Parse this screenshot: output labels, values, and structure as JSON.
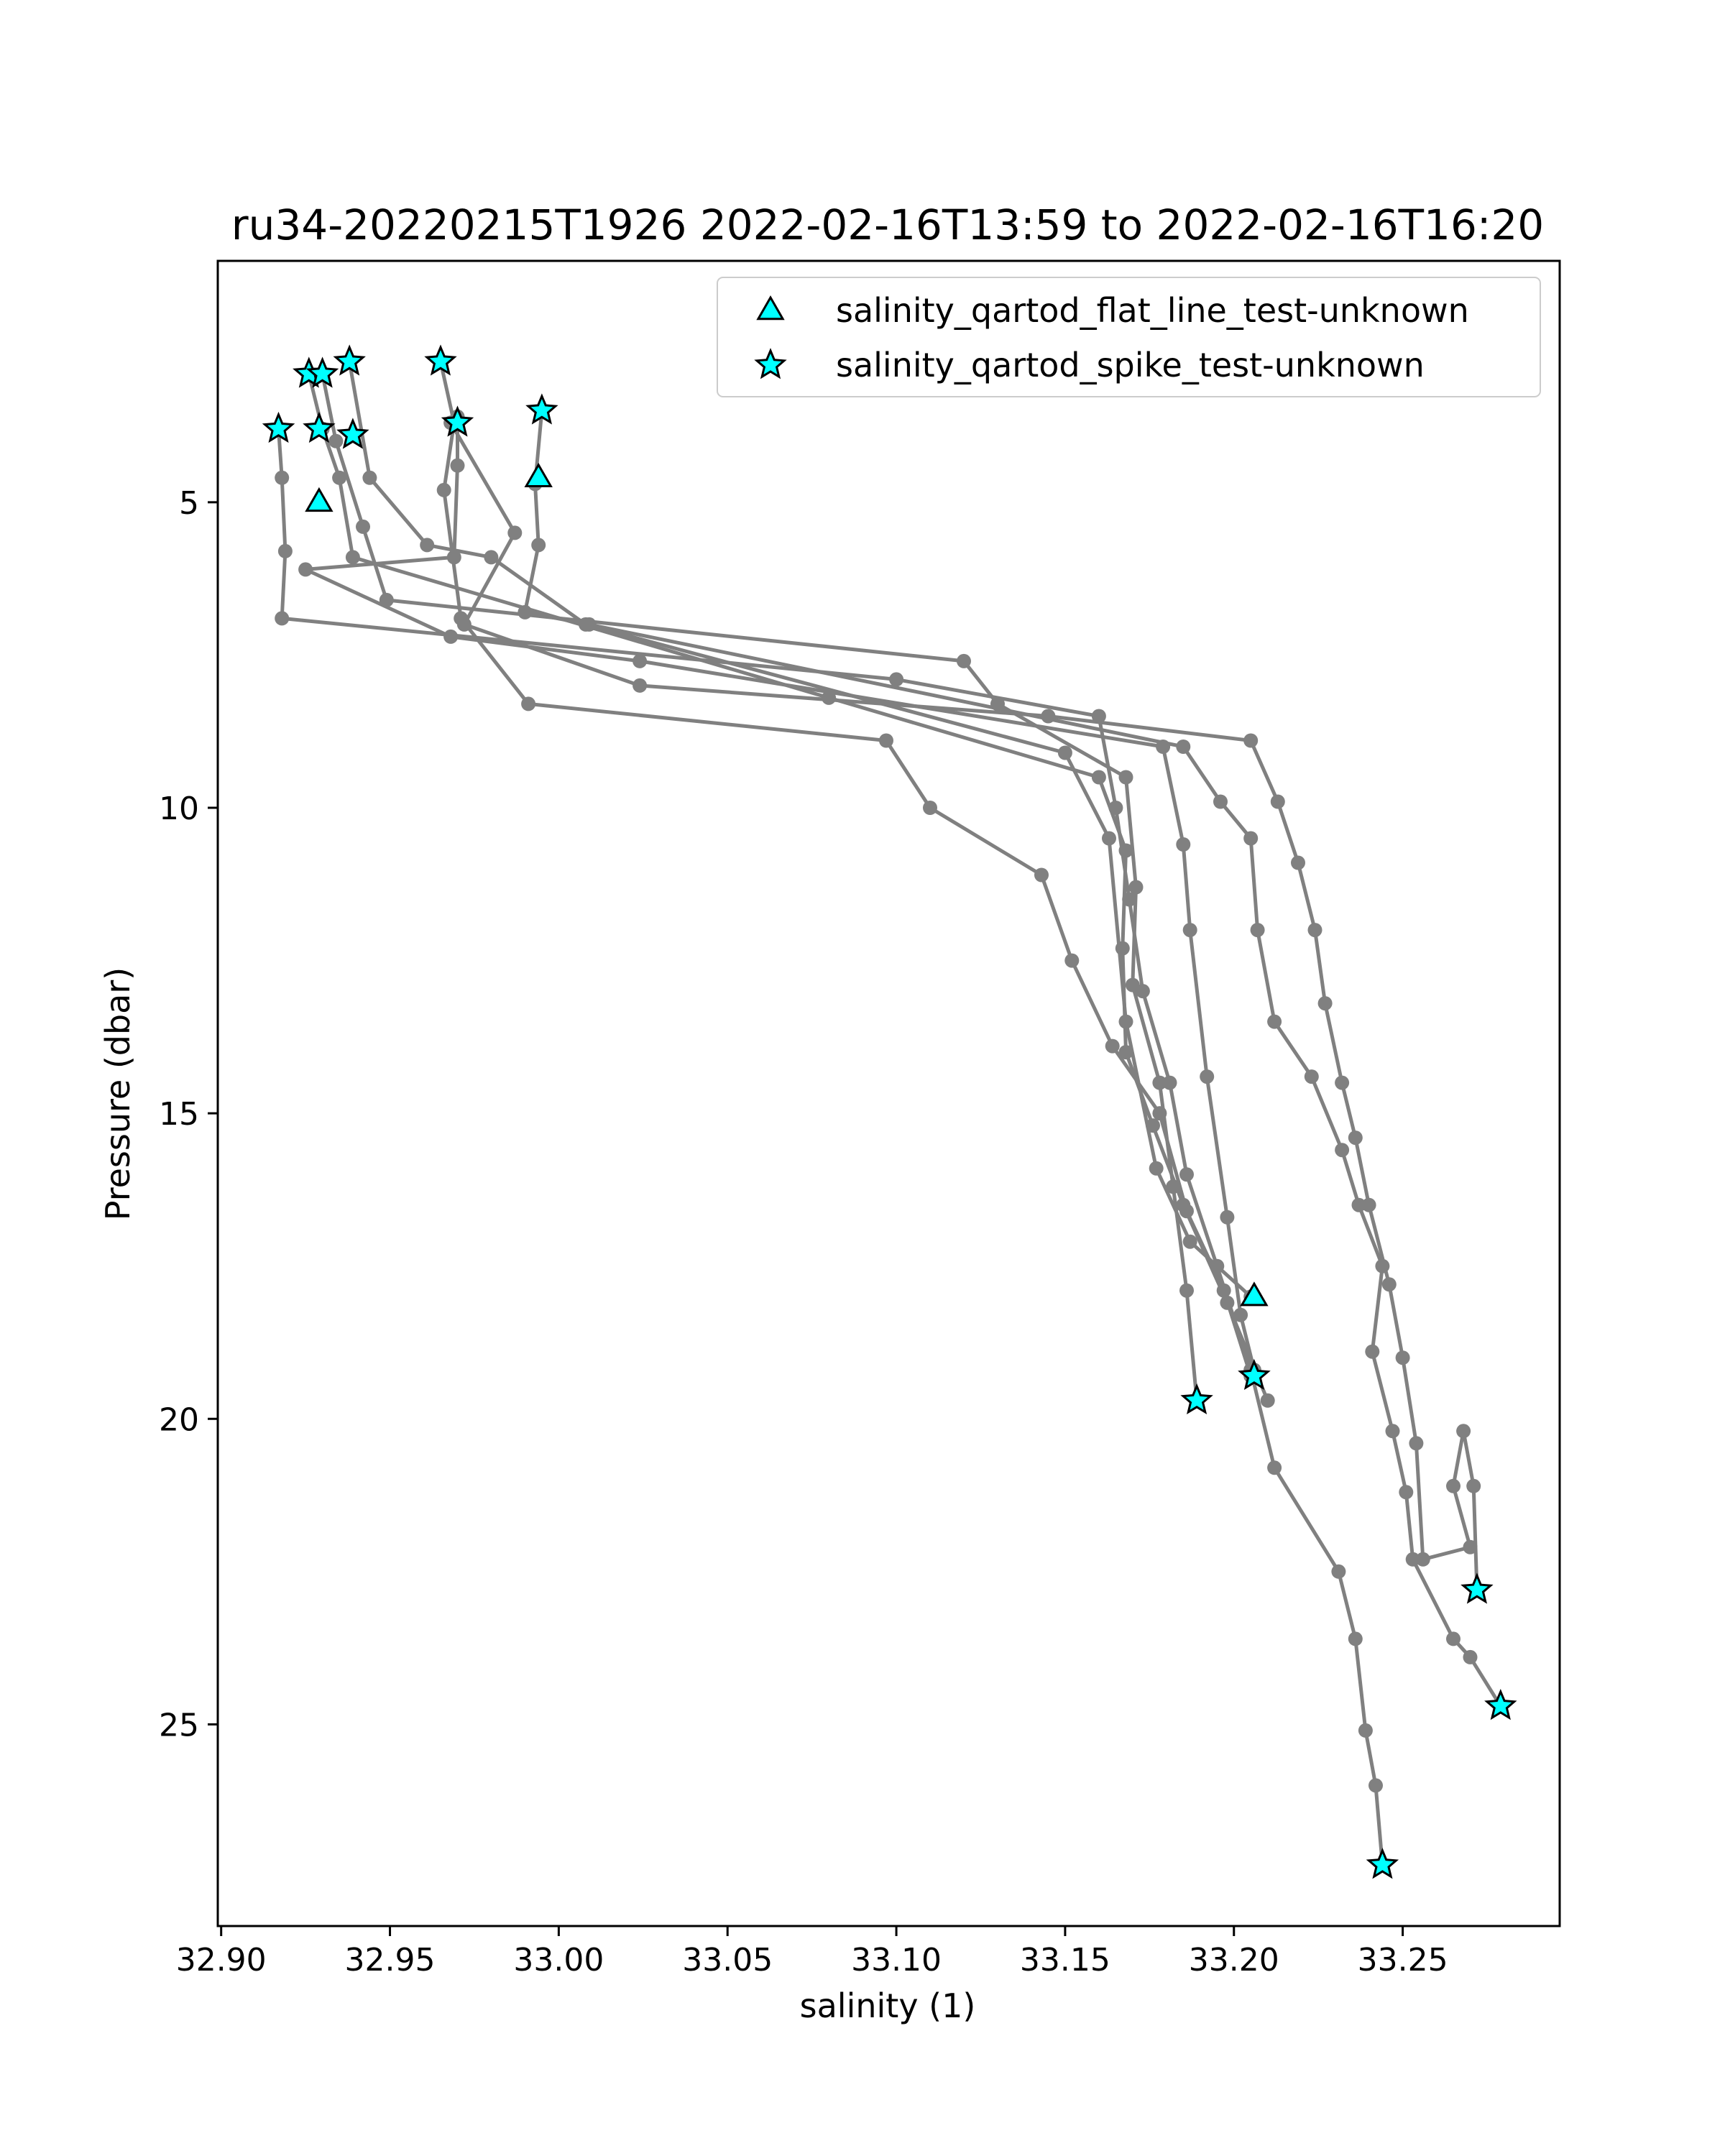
{
  "chart_data": {
    "type": "line",
    "title": "ru34-20220215T1926 2022-02-16T13:59 to 2022-02-16T16:20",
    "xlabel": "salinity (1)",
    "ylabel": "Pressure (dbar)",
    "xlim": [
      32.899,
      33.2965
    ],
    "ylim": [
      28.3,
      1.05
    ],
    "y_inverted": true,
    "x_ticks": [
      32.9,
      32.95,
      33.0,
      33.05,
      33.1,
      33.15,
      33.2,
      33.25
    ],
    "x_tick_labels": [
      "32.90",
      "32.95",
      "33.00",
      "33.05",
      "33.10",
      "33.15",
      "33.20",
      "33.25"
    ],
    "y_ticks": [
      5,
      10,
      15,
      20,
      25
    ],
    "y_tick_labels": [
      "5",
      "10",
      "15",
      "20",
      "25"
    ],
    "grid": false,
    "legend_position": "top-right",
    "colors": {
      "profile_line": "#808080",
      "marker_fill": "#00ffff",
      "marker_edge": "#000000"
    },
    "series": [
      {
        "values": [
          [
            32.917,
            3.8
          ],
          [
            32.918,
            4.6
          ],
          [
            32.919,
            5.8
          ],
          [
            32.918,
            6.9
          ],
          [
            33.1,
            7.9
          ],
          [
            33.16,
            8.5
          ],
          [
            33.165,
            10.0
          ],
          [
            33.169,
            11.5
          ],
          [
            33.173,
            13.0
          ],
          [
            33.181,
            14.5
          ],
          [
            33.186,
            16.0
          ],
          [
            33.195,
            17.5
          ],
          [
            33.205,
            19.2
          ],
          [
            33.212,
            20.8
          ],
          [
            33.231,
            22.5
          ],
          [
            33.236,
            23.6
          ],
          [
            33.239,
            25.1
          ],
          [
            33.242,
            26.0
          ],
          [
            33.244,
            27.3
          ]
        ]
      },
      {
        "values": [
          [
            32.926,
            2.9
          ],
          [
            32.93,
            3.8
          ],
          [
            32.935,
            4.6
          ],
          [
            32.939,
            5.9
          ],
          [
            33.08,
            8.2
          ],
          [
            33.16,
            9.5
          ],
          [
            33.168,
            10.7
          ],
          [
            33.167,
            12.3
          ],
          [
            33.168,
            14.0
          ],
          [
            33.176,
            15.2
          ],
          [
            33.185,
            16.5
          ],
          [
            33.198,
            18.1
          ],
          [
            33.21,
            19.7
          ]
        ]
      },
      {
        "values": [
          [
            32.93,
            2.9
          ],
          [
            32.934,
            4.0
          ],
          [
            32.942,
            5.4
          ],
          [
            32.949,
            6.6
          ],
          [
            33.12,
            7.6
          ],
          [
            33.13,
            8.3
          ],
          [
            33.168,
            9.5
          ],
          [
            33.171,
            11.3
          ],
          [
            33.17,
            12.9
          ],
          [
            33.178,
            14.5
          ],
          [
            33.182,
            16.2
          ],
          [
            33.186,
            17.9
          ],
          [
            33.189,
            19.7
          ]
        ]
      },
      {
        "values": [
          [
            32.938,
            2.7
          ],
          [
            32.944,
            4.6
          ],
          [
            32.961,
            5.7
          ],
          [
            32.98,
            5.9
          ],
          [
            33.008,
            7.0
          ],
          [
            33.15,
            9.1
          ],
          [
            33.163,
            10.5
          ],
          [
            33.168,
            13.5
          ],
          [
            33.177,
            15.9
          ],
          [
            33.187,
            17.1
          ],
          [
            33.205,
            18.0
          ]
        ]
      },
      {
        "values": [
          [
            32.965,
            2.7
          ],
          [
            32.969,
            3.7
          ],
          [
            32.966,
            4.8
          ],
          [
            32.971,
            6.9
          ],
          [
            32.991,
            8.3
          ],
          [
            33.097,
            8.9
          ],
          [
            33.11,
            10.0
          ],
          [
            33.143,
            11.1
          ],
          [
            33.152,
            12.5
          ],
          [
            33.164,
            13.9
          ],
          [
            33.178,
            15.0
          ],
          [
            33.186,
            16.6
          ],
          [
            33.197,
            17.9
          ],
          [
            33.205,
            19.3
          ]
        ]
      },
      {
        "values": [
          [
            32.97,
            3.6
          ],
          [
            32.97,
            4.4
          ],
          [
            32.969,
            5.9
          ],
          [
            32.925,
            6.1
          ],
          [
            32.968,
            7.2
          ],
          [
            33.024,
            7.6
          ],
          [
            33.179,
            9.0
          ],
          [
            33.185,
            10.6
          ],
          [
            33.187,
            12.0
          ],
          [
            33.192,
            14.4
          ],
          [
            33.198,
            16.7
          ],
          [
            33.202,
            18.3
          ],
          [
            33.206,
            19.2
          ]
        ]
      },
      {
        "values": [
          [
            32.995,
            3.5
          ],
          [
            32.993,
            4.7
          ],
          [
            32.994,
            5.7
          ],
          [
            32.99,
            6.8
          ],
          [
            33.009,
            7.0
          ],
          [
            33.185,
            9.0
          ],
          [
            33.196,
            9.9
          ],
          [
            33.205,
            10.5
          ],
          [
            33.207,
            12.0
          ],
          [
            33.212,
            13.5
          ],
          [
            33.223,
            14.4
          ],
          [
            33.232,
            15.6
          ],
          [
            33.237,
            16.5
          ],
          [
            33.244,
            17.5
          ],
          [
            33.241,
            18.9
          ],
          [
            33.247,
            20.2
          ],
          [
            33.251,
            21.2
          ],
          [
            33.253,
            22.3
          ],
          [
            33.265,
            23.6
          ],
          [
            33.27,
            23.9
          ],
          [
            33.279,
            24.7
          ]
        ]
      },
      {
        "values": [
          [
            32.968,
            3.7
          ],
          [
            32.987,
            5.5
          ],
          [
            32.972,
            7.0
          ],
          [
            33.024,
            8.0
          ],
          [
            33.145,
            8.5
          ],
          [
            33.205,
            8.9
          ],
          [
            33.213,
            9.9
          ],
          [
            33.219,
            10.9
          ],
          [
            33.224,
            12.0
          ],
          [
            33.227,
            13.2
          ],
          [
            33.232,
            14.5
          ],
          [
            33.236,
            15.4
          ],
          [
            33.24,
            16.5
          ],
          [
            33.246,
            17.8
          ],
          [
            33.25,
            19.0
          ],
          [
            33.254,
            20.4
          ],
          [
            33.256,
            22.3
          ],
          [
            33.27,
            22.1
          ],
          [
            33.265,
            21.1
          ],
          [
            33.268,
            20.2
          ],
          [
            33.271,
            21.1
          ],
          [
            33.272,
            22.8
          ]
        ]
      }
    ],
    "flags": {
      "salinity_qartod_flat_line_test-unknown": {
        "marker": "triangle",
        "points": [
          [
            32.929,
            5.0
          ],
          [
            32.994,
            4.6
          ],
          [
            33.206,
            18.0
          ]
        ]
      },
      "salinity_qartod_spike_test-unknown": {
        "marker": "star",
        "points": [
          [
            32.917,
            3.8
          ],
          [
            32.926,
            2.9
          ],
          [
            32.93,
            2.9
          ],
          [
            32.938,
            2.7
          ],
          [
            32.965,
            2.7
          ],
          [
            32.929,
            3.8
          ],
          [
            32.939,
            3.9
          ],
          [
            32.97,
            3.7
          ],
          [
            32.995,
            3.5
          ],
          [
            33.189,
            19.7
          ],
          [
            33.206,
            19.3
          ],
          [
            33.272,
            22.8
          ],
          [
            33.279,
            24.7
          ],
          [
            33.244,
            27.3
          ]
        ]
      }
    },
    "legend": [
      {
        "label": "salinity_qartod_flat_line_test-unknown",
        "marker": "triangle"
      },
      {
        "label": "salinity_qartod_spike_test-unknown",
        "marker": "star"
      }
    ]
  }
}
